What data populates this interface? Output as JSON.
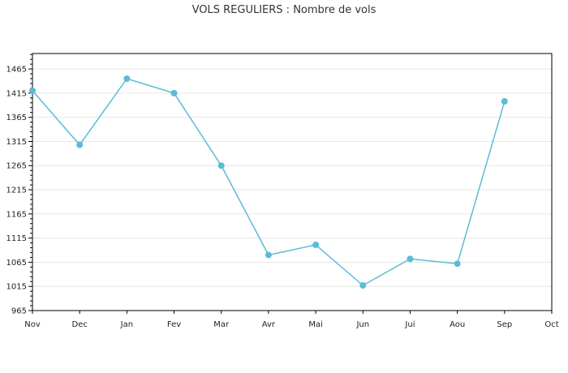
{
  "chart_data": {
    "type": "line",
    "title": "VOLS REGULIERS : Nombre de vols",
    "categories": [
      "Nov",
      "Dec",
      "Jan",
      "Fev",
      "Mar",
      "Avr",
      "Mai",
      "Jun",
      "Jui",
      "Aou",
      "Sep",
      "Oct"
    ],
    "series": [
      {
        "values": [
          1420,
          1308,
          1445,
          1415,
          1265,
          1080,
          1101,
          1017,
          1072,
          1062,
          1398,
          null
        ],
        "color": "#5bbcd6"
      }
    ],
    "y_ticks": [
      "965",
      "1015",
      "1065",
      "1115",
      "1165",
      "1215",
      "1265",
      "1315",
      "1365",
      "1415",
      "1465"
    ],
    "ylim": [
      965,
      1497
    ],
    "grid": true,
    "legend": "none"
  }
}
